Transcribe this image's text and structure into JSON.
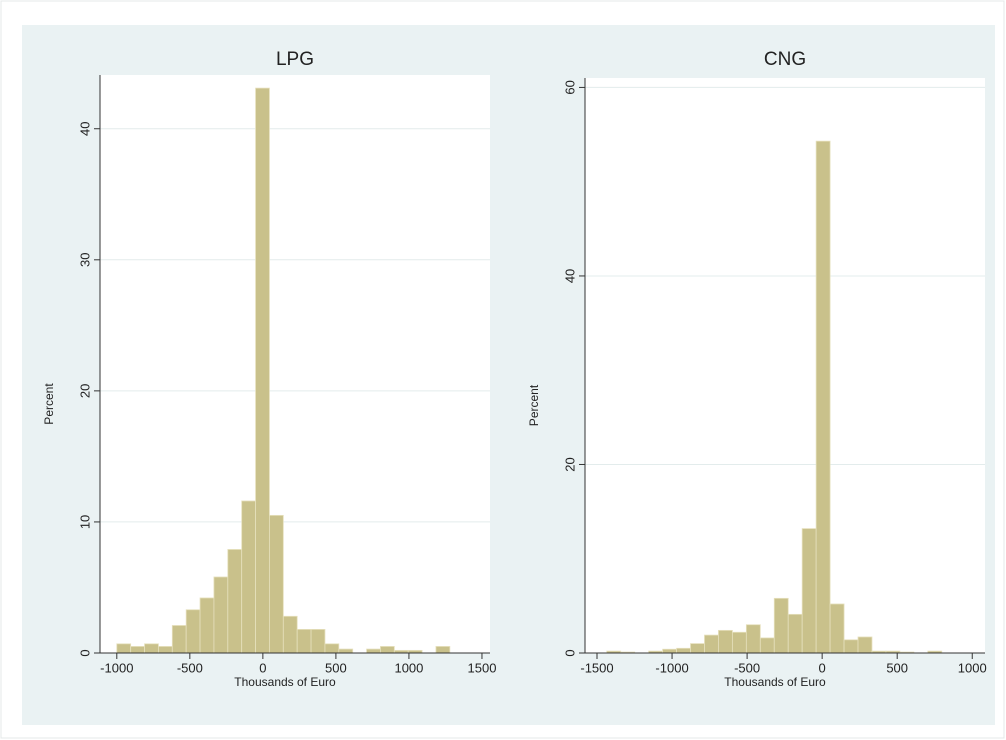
{
  "chart_data": [
    {
      "type": "histogram",
      "title": "LPG",
      "xlabel": "Thousands of Euro",
      "ylabel": "Percent",
      "color": "#c9c18b",
      "bins": [
        -1000,
        -905,
        -810,
        -715,
        -620,
        -525,
        -430,
        -335,
        -240,
        -145,
        -50,
        45,
        140,
        235,
        330,
        425,
        520,
        615,
        710,
        805,
        900,
        995,
        1090,
        1185,
        1280,
        1375
      ],
      "values": [
        0.7,
        0.5,
        0.7,
        0.5,
        2.1,
        3.3,
        4.2,
        5.8,
        7.9,
        11.6,
        43.1,
        10.5,
        2.8,
        1.8,
        1.8,
        0.7,
        0.3,
        0,
        0.3,
        0.5,
        0.2,
        0.2,
        0,
        0.5,
        0
      ],
      "xlim": [
        -1115,
        1555
      ],
      "ylim": [
        0,
        44.1
      ],
      "xticks": [
        -1000,
        -500,
        0,
        500,
        1000,
        1500
      ],
      "yticks": [
        0,
        10,
        20,
        30,
        40
      ],
      "grid": true
    },
    {
      "type": "histogram",
      "title": "CNG",
      "xlabel": "Thousands of Euro",
      "ylabel": "Percent",
      "color": "#c9c18b",
      "bins": [
        -1435,
        -1342,
        -1249,
        -1156,
        -1063,
        -970,
        -877,
        -784,
        -691,
        -598,
        -505,
        -412,
        -319,
        -226,
        -133,
        -40,
        53,
        146,
        239,
        332,
        425,
        518,
        611,
        704,
        797
      ],
      "values": [
        0.2,
        0.1,
        0,
        0.2,
        0.4,
        0.5,
        1.0,
        1.9,
        2.4,
        2.2,
        3.0,
        1.6,
        5.8,
        4.1,
        13.2,
        54.3,
        5.2,
        1.4,
        1.7,
        0.2,
        0.2,
        0.1,
        0,
        0.2
      ],
      "xlim": [
        -1580,
        1085
      ],
      "ylim": [
        0,
        61
      ],
      "xticks": [
        -1500,
        -1000,
        -500,
        0,
        500,
        1000
      ],
      "yticks": [
        0,
        20,
        40,
        60
      ],
      "grid": true
    }
  ]
}
